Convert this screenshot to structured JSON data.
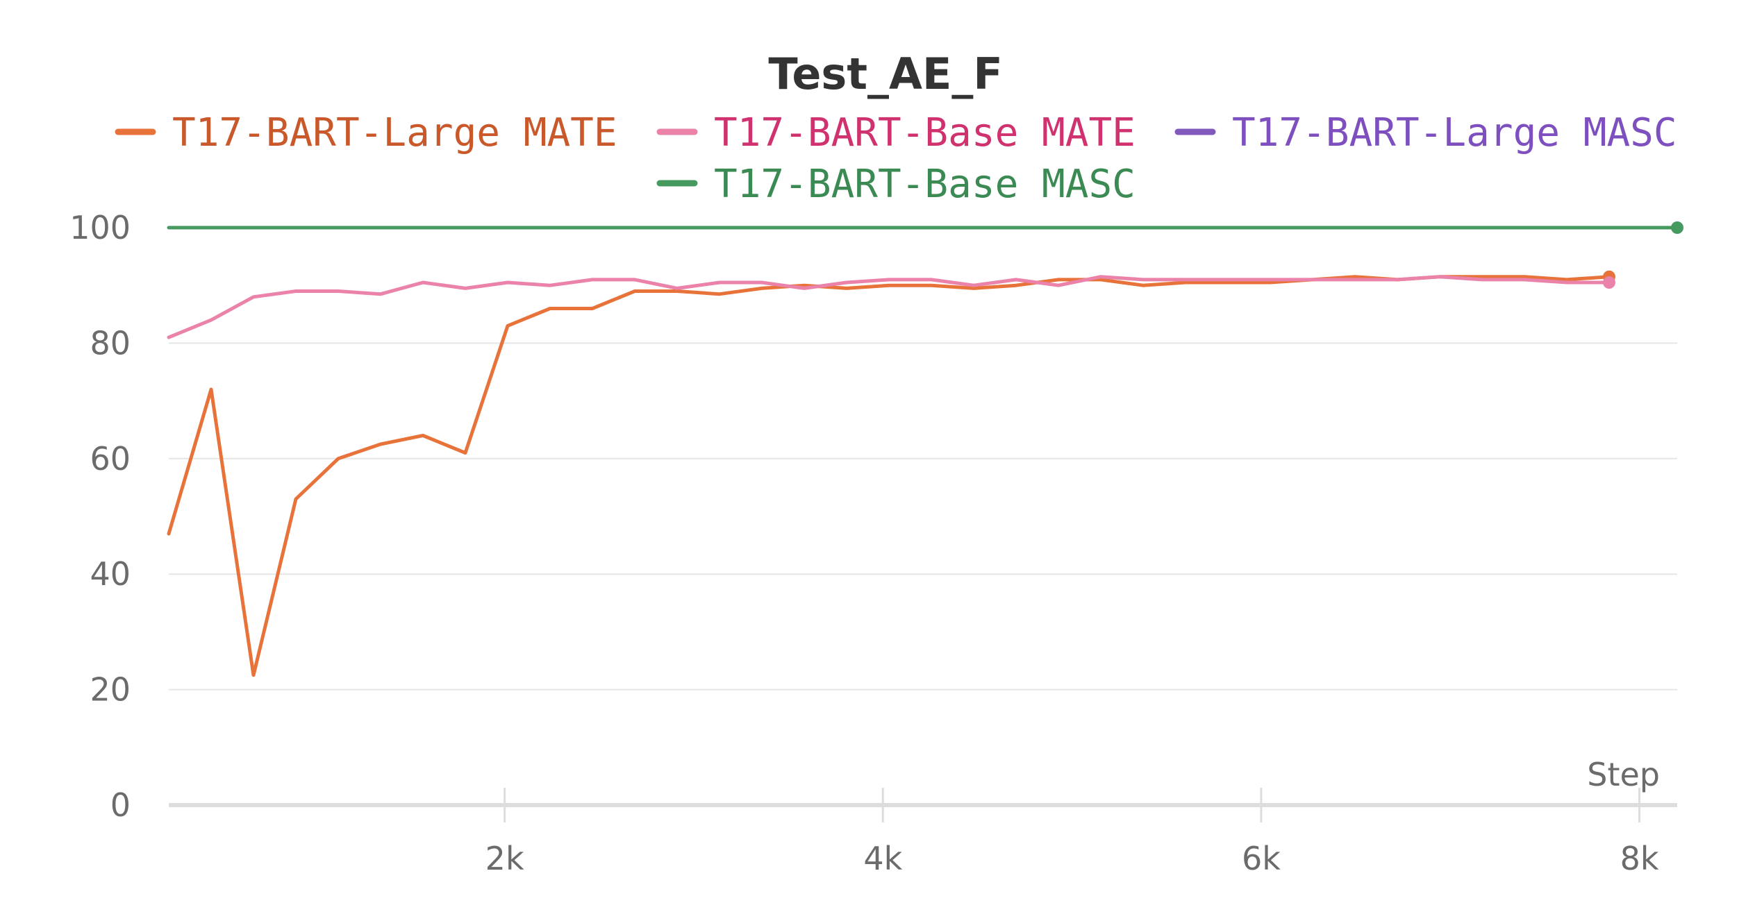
{
  "chart_data": {
    "type": "line",
    "title": "Test_AE_F",
    "xlabel": "Step",
    "ylabel": "",
    "xlim": [
      0,
      8200
    ],
    "ylim": [
      0,
      100
    ],
    "x_ticks": [
      {
        "value": 2000,
        "label": "2k"
      },
      {
        "value": 4000,
        "label": "4k"
      },
      {
        "value": 6000,
        "label": "6k"
      },
      {
        "value": 8000,
        "label": "8k"
      }
    ],
    "y_ticks": [
      {
        "value": 0,
        "label": "0"
      },
      {
        "value": 20,
        "label": "20"
      },
      {
        "value": 40,
        "label": "40"
      },
      {
        "value": 60,
        "label": "60"
      },
      {
        "value": 80,
        "label": "80"
      },
      {
        "value": 100,
        "label": "100"
      }
    ],
    "grid": true,
    "legend_position": "top",
    "series": [
      {
        "name": "T17-BART-Large MATE",
        "color": "#e8733a",
        "text_color": "#c9582a",
        "end_marker": true,
        "x": [
          224,
          448,
          672,
          896,
          1120,
          1344,
          1568,
          1792,
          2016,
          2240,
          2464,
          2688,
          2912,
          3136,
          3360,
          3584,
          3808,
          4032,
          4256,
          4480,
          4704,
          4928,
          5152,
          5376,
          5600,
          5824,
          6048,
          6272,
          6496,
          6720,
          6944,
          7168,
          7392,
          7616,
          7840
        ],
        "y": [
          47,
          72,
          22.5,
          53,
          60,
          62.5,
          64,
          61,
          83,
          86,
          86,
          89,
          89,
          88.5,
          89.5,
          90,
          89.5,
          90,
          90,
          89.5,
          90,
          91,
          91,
          90,
          90.5,
          90.5,
          90.5,
          91,
          91.5,
          91,
          91.5,
          91.5,
          91.5,
          91,
          91.5
        ]
      },
      {
        "name": "T17-BART-Base MATE",
        "color": "#ea82a9",
        "text_color": "#d0326f",
        "end_marker": true,
        "x": [
          224,
          448,
          672,
          896,
          1120,
          1344,
          1568,
          1792,
          2016,
          2240,
          2464,
          2688,
          2912,
          3136,
          3360,
          3584,
          3808,
          4032,
          4256,
          4480,
          4704,
          4928,
          5152,
          5376,
          5600,
          5824,
          6048,
          6272,
          6496,
          6720,
          6944,
          7168,
          7392,
          7616,
          7840
        ],
        "y": [
          81,
          84,
          88,
          89,
          89,
          88.5,
          90.5,
          89.5,
          90.5,
          90,
          91,
          91,
          89.5,
          90.5,
          90.5,
          89.5,
          90.5,
          91,
          91,
          90,
          91,
          90,
          91.5,
          91,
          91,
          91,
          91,
          91,
          91,
          91,
          91.5,
          91,
          91,
          90.5,
          90.5
        ]
      },
      {
        "name": "T17-BART-Large MASC",
        "color": "#8159bd",
        "text_color": "#7e4fbf",
        "end_marker": false,
        "x": [],
        "y": []
      },
      {
        "name": "T17-BART-Base MASC",
        "color": "#479a5f",
        "text_color": "#3b8a53",
        "end_marker": true,
        "x": [
          224,
          8200
        ],
        "y": [
          100,
          100
        ]
      }
    ]
  }
}
